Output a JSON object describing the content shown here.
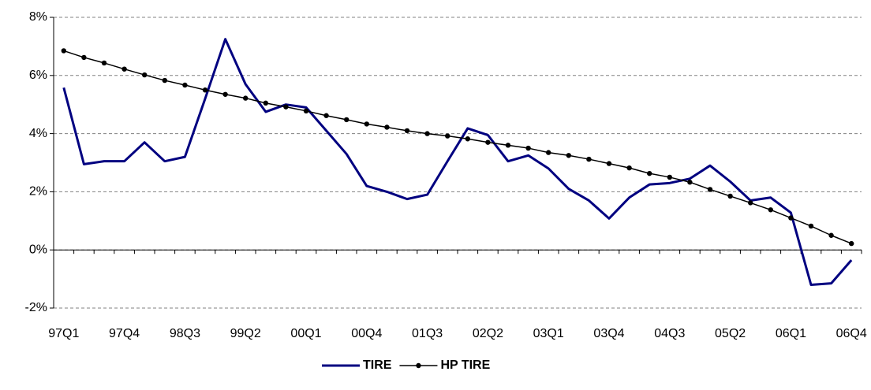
{
  "chart_data": {
    "type": "line",
    "categories": [
      "97Q1",
      null,
      null,
      "97Q4",
      null,
      null,
      "98Q3",
      null,
      null,
      "99Q2",
      null,
      null,
      "00Q1",
      null,
      null,
      "00Q4",
      null,
      null,
      "01Q3",
      null,
      null,
      "02Q2",
      null,
      null,
      "03Q1",
      null,
      null,
      "03Q4",
      null,
      null,
      "04Q3",
      null,
      null,
      "05Q2",
      null,
      null,
      "06Q1",
      null,
      null,
      "06Q4"
    ],
    "series": [
      {
        "name": "TIRE",
        "color": "#000080",
        "marker": false,
        "values": [
          5.58,
          2.95,
          3.05,
          3.05,
          3.7,
          3.05,
          3.2,
          5.2,
          7.25,
          5.7,
          4.75,
          5.0,
          4.9,
          4.1,
          3.3,
          2.2,
          2.0,
          1.75,
          1.9,
          3.05,
          4.18,
          3.95,
          3.05,
          3.25,
          2.8,
          2.1,
          1.7,
          1.08,
          1.8,
          2.25,
          2.3,
          2.45,
          2.9,
          2.35,
          1.7,
          1.8,
          1.28,
          -1.2,
          -1.15,
          -0.35
        ]
      },
      {
        "name": "HP TIRE",
        "color": "#000000",
        "marker": true,
        "values": [
          6.85,
          6.62,
          6.43,
          6.22,
          6.02,
          5.83,
          5.67,
          5.5,
          5.35,
          5.22,
          5.05,
          4.92,
          4.78,
          4.62,
          4.48,
          4.33,
          4.22,
          4.1,
          4.0,
          3.92,
          3.82,
          3.7,
          3.6,
          3.5,
          3.35,
          3.25,
          3.12,
          2.97,
          2.82,
          2.63,
          2.5,
          2.33,
          2.08,
          1.85,
          1.62,
          1.38,
          1.1,
          0.82,
          0.5,
          0.22
        ]
      }
    ],
    "ylim": [
      -2,
      8
    ],
    "yticks": [
      {
        "value": -2,
        "label": "-2%"
      },
      {
        "value": 0,
        "label": "0%"
      },
      {
        "value": 2,
        "label": "2%"
      },
      {
        "value": 4,
        "label": "4%"
      },
      {
        "value": 6,
        "label": "6%"
      },
      {
        "value": 8,
        "label": "8%"
      }
    ],
    "grid": true,
    "legend": "bottom"
  }
}
